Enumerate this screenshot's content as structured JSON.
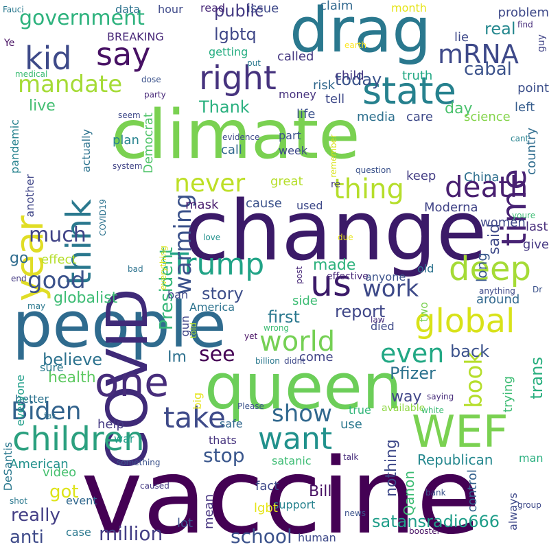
{
  "words": [
    {
      "text": "vaccine",
      "color": "#440154"
    },
    {
      "text": "change",
      "color": "#3b1a68"
    },
    {
      "text": "climate",
      "color": "#7ad151"
    },
    {
      "text": "queen",
      "color": "#6cce59"
    },
    {
      "text": "people",
      "color": "#2f6b8e"
    },
    {
      "text": "COVID",
      "color": "#3f2a78"
    },
    {
      "text": "drag",
      "color": "#2a788e"
    },
    {
      "text": "state",
      "color": "#26818e"
    },
    {
      "text": "WEF",
      "color": "#7ad151"
    },
    {
      "text": "one",
      "color": "#472d7b"
    },
    {
      "text": "us",
      "color": "#3b1a68"
    },
    {
      "text": "children",
      "color": "#2ba07f"
    },
    {
      "text": "year",
      "color": "#e0dd25"
    },
    {
      "text": "right",
      "color": "#46337e"
    },
    {
      "text": "think",
      "color": "#2a788e"
    },
    {
      "text": "global",
      "color": "#d8e219"
    },
    {
      "text": "time",
      "color": "#482374"
    },
    {
      "text": "deep",
      "color": "#a5db36"
    },
    {
      "text": "say",
      "color": "#471164"
    },
    {
      "text": "kid",
      "color": "#3e4a89"
    },
    {
      "text": "Trump",
      "color": "#20a386"
    },
    {
      "text": "death",
      "color": "#481f70"
    },
    {
      "text": "take",
      "color": "#3e4a89"
    },
    {
      "text": "want",
      "color": "#21918c"
    },
    {
      "text": "world",
      "color": "#75d054"
    },
    {
      "text": "even",
      "color": "#22a884"
    },
    {
      "text": "thing",
      "color": "#b5de2b"
    },
    {
      "text": "mRNA",
      "color": "#3e4989"
    },
    {
      "text": "government",
      "color": "#2db27d"
    },
    {
      "text": "warming",
      "color": "#3b528b"
    },
    {
      "text": "mandate",
      "color": "#a5db36"
    },
    {
      "text": "book",
      "color": "#b5de2b"
    },
    {
      "text": "never",
      "color": "#bddf26"
    },
    {
      "text": "good",
      "color": "#3b528b"
    },
    {
      "text": "work",
      "color": "#3e4a89"
    },
    {
      "text": "show",
      "color": "#31688e"
    },
    {
      "text": "see",
      "color": "#440154"
    },
    {
      "text": "Biden",
      "color": "#33638d"
    },
    {
      "text": "much",
      "color": "#414487"
    },
    {
      "text": "back",
      "color": "#3b528b"
    },
    {
      "text": "President",
      "color": "#35b779"
    },
    {
      "text": "globalist",
      "color": "#3dbc74"
    },
    {
      "text": "stop",
      "color": "#39568c"
    },
    {
      "text": "Pfizer",
      "color": "#2c728e"
    },
    {
      "text": "public",
      "color": "#443a83"
    },
    {
      "text": "Thank",
      "color": "#2ab07f"
    },
    {
      "text": "report",
      "color": "#3f4788"
    },
    {
      "text": "first",
      "color": "#2a788e"
    },
    {
      "text": "story",
      "color": "#3d4e8a"
    },
    {
      "text": "cabal",
      "color": "#3b528b"
    },
    {
      "text": "today",
      "color": "#3a538b"
    },
    {
      "text": "real",
      "color": "#24878e"
    },
    {
      "text": "million",
      "color": "#433e85"
    },
    {
      "text": "school",
      "color": "#3b528b"
    },
    {
      "text": "satansradio666",
      "color": "#1f9e89"
    },
    {
      "text": "really",
      "color": "#433e85"
    },
    {
      "text": "believe",
      "color": "#2c728e"
    },
    {
      "text": "health",
      "color": "#5ec962"
    },
    {
      "text": "anti",
      "color": "#3e4a89"
    },
    {
      "text": "got",
      "color": "#dde318"
    },
    {
      "text": "live",
      "color": "#42be71"
    },
    {
      "text": "lgbtq",
      "color": "#3f4788"
    },
    {
      "text": "trans",
      "color": "#29af7f"
    },
    {
      "text": "Republican",
      "color": "#24878e"
    },
    {
      "text": "made",
      "color": "#2db27d"
    },
    {
      "text": "day",
      "color": "#4ac16d"
    },
    {
      "text": "way",
      "color": "#404688"
    },
    {
      "text": "help",
      "color": "#443983"
    },
    {
      "text": "video",
      "color": "#46c06f"
    },
    {
      "text": "go",
      "color": "#2f6c8e"
    },
    {
      "text": "Im",
      "color": "#2d708e"
    },
    {
      "text": "called",
      "color": "#453781"
    },
    {
      "text": "lie",
      "color": "#3e4989"
    },
    {
      "text": "point",
      "color": "#3c4f8a"
    },
    {
      "text": "left",
      "color": "#365d8d"
    },
    {
      "text": "said",
      "color": "#3e4989"
    },
    {
      "text": "last",
      "color": "#472d7b"
    },
    {
      "text": "give",
      "color": "#453882"
    },
    {
      "text": "long",
      "color": "#38598c"
    },
    {
      "text": "Moderna",
      "color": "#414487"
    },
    {
      "text": "women",
      "color": "#3f4889"
    },
    {
      "text": "China",
      "color": "#2e6f8e"
    },
    {
      "text": "mask",
      "color": "#481b6d"
    },
    {
      "text": "cause",
      "color": "#3b528b"
    },
    {
      "text": "used",
      "color": "#3e4989"
    },
    {
      "text": "great",
      "color": "#b5de2b"
    },
    {
      "text": "keep",
      "color": "#433d84"
    },
    {
      "text": "care",
      "color": "#3e4989"
    },
    {
      "text": "science",
      "color": "#84d44b"
    },
    {
      "text": "country",
      "color": "#2f6c8e"
    },
    {
      "text": "life",
      "color": "#3b528b"
    },
    {
      "text": "media",
      "color": "#2d708e"
    },
    {
      "text": "truth",
      "color": "#22a884"
    },
    {
      "text": "problem",
      "color": "#3e4989"
    },
    {
      "text": "claim",
      "color": "#31688e"
    },
    {
      "text": "month",
      "color": "#e5e419"
    },
    {
      "text": "issue",
      "color": "#3e4989"
    },
    {
      "text": "read",
      "color": "#482878"
    },
    {
      "text": "hour",
      "color": "#3e4989"
    },
    {
      "text": "data",
      "color": "#2c728e"
    },
    {
      "text": "BREAKING",
      "color": "#482878"
    },
    {
      "text": "getting",
      "color": "#26ad81"
    },
    {
      "text": "child",
      "color": "#443983"
    },
    {
      "text": "risk",
      "color": "#31688e"
    },
    {
      "text": "tell",
      "color": "#3e4989"
    },
    {
      "text": "money",
      "color": "#46327e"
    },
    {
      "text": "part",
      "color": "#3b528b"
    },
    {
      "text": "week",
      "color": "#3e4989"
    },
    {
      "text": "call",
      "color": "#31688e"
    },
    {
      "text": "plan",
      "color": "#26828e"
    },
    {
      "text": "Democrat",
      "color": "#50c46a"
    },
    {
      "text": "actually",
      "color": "#2c728e"
    },
    {
      "text": "pandemic",
      "color": "#26828e"
    },
    {
      "text": "another",
      "color": "#404688"
    },
    {
      "text": "effect",
      "color": "#b5de2b"
    },
    {
      "text": "anyone",
      "color": "#3b528b"
    },
    {
      "text": "old",
      "color": "#2c728e"
    },
    {
      "text": "around",
      "color": "#31688e"
    },
    {
      "text": "two",
      "color": "#7ad151"
    },
    {
      "text": "side",
      "color": "#3dbc74"
    },
    {
      "text": "died",
      "color": "#3e4989"
    },
    {
      "text": "come",
      "color": "#414487"
    },
    {
      "text": "ban",
      "color": "#3e4989"
    },
    {
      "text": "America",
      "color": "#2c728e"
    },
    {
      "text": "gun",
      "color": "#404688"
    },
    {
      "text": "trying",
      "color": "#3dbc74"
    },
    {
      "text": "available",
      "color": "#8fd744"
    },
    {
      "text": "true",
      "color": "#32b67a"
    },
    {
      "text": "use",
      "color": "#2a788e"
    },
    {
      "text": "nothing",
      "color": "#3e4989"
    },
    {
      "text": "thats",
      "color": "#46337e"
    },
    {
      "text": "safe",
      "color": "#31688e"
    },
    {
      "text": "war",
      "color": "#1f9e89"
    },
    {
      "text": "satanic",
      "color": "#3dbc74"
    },
    {
      "text": "control",
      "color": "#34618d"
    },
    {
      "text": "always",
      "color": "#3e4989"
    },
    {
      "text": "man",
      "color": "#29af7f"
    },
    {
      "text": "Qanon",
      "color": "#3dbc74"
    },
    {
      "text": "fact",
      "color": "#3e4989"
    },
    {
      "text": "Bill",
      "color": "#471063"
    },
    {
      "text": "support",
      "color": "#26828e"
    },
    {
      "text": "lgbt",
      "color": "#e5e419"
    },
    {
      "text": "mean",
      "color": "#463480"
    },
    {
      "text": "event",
      "color": "#31688e"
    },
    {
      "text": "case",
      "color": "#2a788e"
    },
    {
      "text": "lot",
      "color": "#3b528b"
    },
    {
      "text": "human",
      "color": "#3e4989"
    },
    {
      "text": "American",
      "color": "#21918c"
    },
    {
      "text": "better",
      "color": "#2c728e"
    },
    {
      "text": "sure",
      "color": "#2a788e"
    },
    {
      "text": "everyone",
      "color": "#1f9e89"
    },
    {
      "text": "DeSantis",
      "color": "#2a788e"
    },
    {
      "text": "big",
      "color": "#e5e419"
    },
    {
      "text": "Fauci",
      "color": "#2a788e"
    },
    {
      "text": "Ye",
      "color": "#471063"
    },
    {
      "text": "medical",
      "color": "#3dbc74"
    },
    {
      "text": "put",
      "color": "#2a788e"
    },
    {
      "text": "earth",
      "color": "#fde725"
    },
    {
      "text": "find",
      "color": "#472d7b"
    },
    {
      "text": "guy",
      "color": "#414487"
    },
    {
      "text": "dose",
      "color": "#3b528b"
    },
    {
      "text": "party",
      "color": "#482878"
    },
    {
      "text": "seem",
      "color": "#3e4989"
    },
    {
      "text": "evidence",
      "color": "#3e4989"
    },
    {
      "text": "remember",
      "color": "#d8e219"
    },
    {
      "text": "cant",
      "color": "#26828e"
    },
    {
      "text": "system",
      "color": "#414487"
    },
    {
      "text": "question",
      "color": "#3b528b"
    },
    {
      "text": "re",
      "color": "#443983"
    },
    {
      "text": "COVID19",
      "color": "#2c728e"
    },
    {
      "text": "youre",
      "color": "#3dbc74"
    },
    {
      "text": "love",
      "color": "#21918c"
    },
    {
      "text": "due",
      "color": "#e5e419"
    },
    {
      "text": "everything",
      "color": "#d8e219"
    },
    {
      "text": "post",
      "color": "#482878"
    },
    {
      "text": "bad",
      "color": "#2c728e"
    },
    {
      "text": "effective",
      "color": "#482878"
    },
    {
      "text": "end",
      "color": "#443983"
    },
    {
      "text": "may",
      "color": "#2a788e"
    },
    {
      "text": "told",
      "color": "#b5de2b"
    },
    {
      "text": "anything",
      "color": "#3e4989"
    },
    {
      "text": "Dr",
      "color": "#3b528b"
    },
    {
      "text": "wrong",
      "color": "#3dbc74"
    },
    {
      "text": "law",
      "color": "#472d7b"
    },
    {
      "text": "yet",
      "color": "#471063"
    },
    {
      "text": "billion",
      "color": "#2a788e"
    },
    {
      "text": "didnt",
      "color": "#3e4989"
    },
    {
      "text": "saying",
      "color": "#472d7b"
    },
    {
      "text": "white",
      "color": "#3dbc74"
    },
    {
      "text": "Please",
      "color": "#3b528b"
    },
    {
      "text": "far",
      "color": "#2c728e"
    },
    {
      "text": "something",
      "color": "#3b528b"
    },
    {
      "text": "talk",
      "color": "#472d7b"
    },
    {
      "text": "caused",
      "color": "#443983"
    },
    {
      "text": "bank",
      "color": "#3b528b"
    },
    {
      "text": "group",
      "color": "#3e4989"
    },
    {
      "text": "shot",
      "color": "#2a788e"
    },
    {
      "text": "news",
      "color": "#3b528b"
    },
    {
      "text": "booster",
      "color": "#471063"
    }
  ]
}
